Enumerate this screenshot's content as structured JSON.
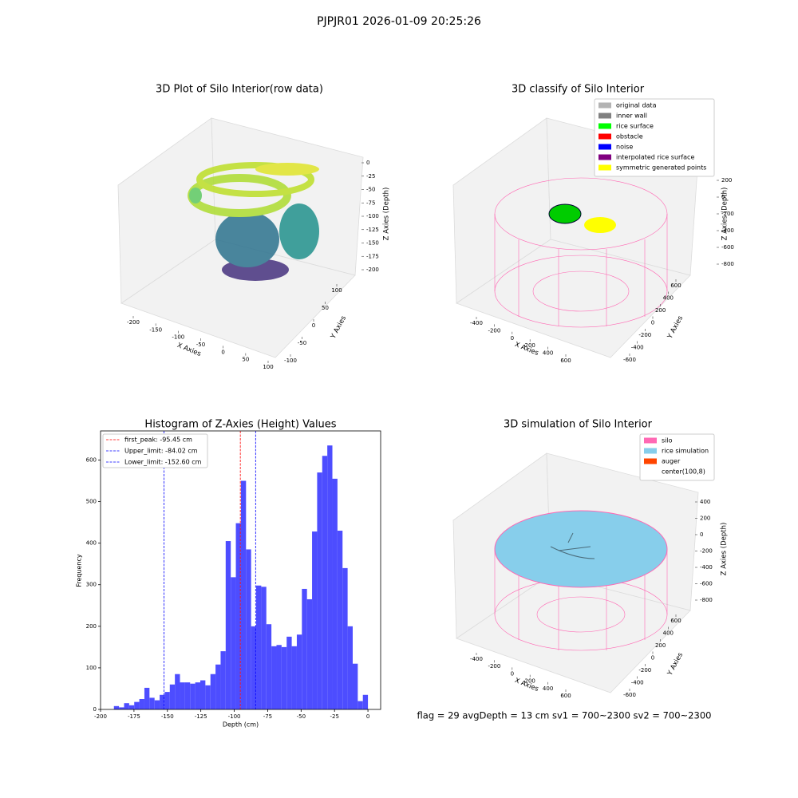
{
  "title": "PJPJR01 2026-01-09 20:25:26",
  "status": "flag = 29  avgDepth = 13 cm    sv1 = 700~2300  sv2 = 700~2300",
  "chart_data": [
    {
      "type": "scatter3d",
      "title": "3D Plot of Silo Interior(row data)",
      "xlabel": "X Axies",
      "ylabel": "Y Axies",
      "zlabel": "Z Axies (Depth)",
      "xlim": [
        -200,
        100
      ],
      "xticks": [
        -200,
        -150,
        -100,
        -50,
        0,
        50,
        100
      ],
      "ylim": [
        -100,
        100
      ],
      "yticks": [
        -100,
        -50,
        0,
        50,
        100
      ],
      "zlim": [
        0,
        -200
      ],
      "zticks": [
        0,
        -25,
        -50,
        -75,
        -100,
        -125,
        -150,
        -175,
        -200
      ]
    },
    {
      "type": "scatter3d",
      "title": "3D classify of Silo Interior",
      "xlabel": "X Axies",
      "ylabel": "Y Axies",
      "zlabel": "Z Axies (Depth)",
      "xlim": [
        -400,
        600
      ],
      "xticks": [
        -400,
        -200,
        0,
        200,
        400,
        600
      ],
      "ylim": [
        -600,
        600
      ],
      "yticks": [
        -600,
        -400,
        -200,
        0,
        200,
        400,
        600
      ],
      "zlim": [
        200,
        -800
      ],
      "zticks": [
        200,
        0,
        -200,
        -400,
        -600,
        -800
      ],
      "series": [
        {
          "name": "original data",
          "color": "#b3b3b3"
        },
        {
          "name": "inner wall",
          "color": "#808080"
        },
        {
          "name": "rice surface",
          "color": "#00ff00"
        },
        {
          "name": "obstacle",
          "color": "#ff0000"
        },
        {
          "name": "noise",
          "color": "#0000ff"
        },
        {
          "name": "interpolated rice surface",
          "color": "#800080"
        },
        {
          "name": "symmetric generated points",
          "color": "#ffff00"
        }
      ]
    },
    {
      "type": "histogram",
      "title": "Histogram of Z-Axies (Height) Values",
      "xlabel": "Depth (cm)",
      "ylabel": "Frequency",
      "color": "#4d4dff",
      "bins": [
        -190,
        -186.2,
        -182.4,
        -178.6,
        -174.8,
        -171,
        -167.2,
        -163.4,
        -159.6,
        -155.8,
        -152,
        -148.2,
        -144.4,
        -140.6,
        -136.8,
        -133,
        -129.2,
        -125.4,
        -121.6,
        -117.8,
        -114,
        -110.2,
        -106.4,
        -102.6,
        -98.8,
        -95,
        -91.2,
        -87.4,
        -83.6,
        -79.8,
        -76,
        -72.2,
        -68.4,
        -64.6,
        -60.8,
        -57,
        -53.2,
        -49.4,
        -45.6,
        -41.8,
        -38,
        -34.2,
        -30.4,
        -26.6,
        -22.8,
        -19,
        -15.2,
        -11.4,
        -7.6,
        -3.8,
        0
      ],
      "values": [
        8,
        5,
        15,
        10,
        18,
        25,
        52,
        28,
        22,
        35,
        42,
        60,
        85,
        65,
        65,
        62,
        65,
        70,
        58,
        85,
        108,
        140,
        405,
        318,
        448,
        550,
        385,
        200,
        298,
        295,
        205,
        152,
        155,
        150,
        175,
        152,
        180,
        290,
        265,
        428,
        570,
        610,
        635,
        555,
        430,
        340,
        200,
        110,
        20,
        35
      ],
      "xlim": [
        -200,
        9.5
      ],
      "xticks": [
        -200,
        -175,
        -150,
        -125,
        -100,
        -75,
        -50,
        -25,
        0
      ],
      "ylim": [
        0,
        670
      ],
      "yticks": [
        0,
        100,
        200,
        300,
        400,
        500,
        600
      ],
      "lines": [
        {
          "name": "first_peak",
          "value": -95.45,
          "label": "first_peak: -95.45 cm",
          "color": "#ff0000"
        },
        {
          "name": "Upper_limit",
          "value": -84.02,
          "label": "Upper_limit: -84.02 cm",
          "color": "#0000ff"
        },
        {
          "name": "Lower_limit",
          "value": -152.6,
          "label": "Lower_limit: -152.60 cm",
          "color": "#0000ff"
        }
      ]
    },
    {
      "type": "scatter3d",
      "title": "3D simulation of Silo Interior",
      "xlabel": "X Axies",
      "ylabel": "Y Axies",
      "zlabel": "Z Axies (Depth)",
      "xlim": [
        -400,
        600
      ],
      "xticks": [
        -400,
        -200,
        0,
        200,
        400,
        600
      ],
      "ylim": [
        -600,
        600
      ],
      "yticks": [
        -600,
        -400,
        -200,
        0,
        200,
        400,
        600
      ],
      "zlim": [
        400,
        -800
      ],
      "zticks": [
        400,
        200,
        0,
        -200,
        -400,
        -600,
        -800
      ],
      "series": [
        {
          "name": "silo",
          "color": "#ff69b4"
        },
        {
          "name": "rice simulation",
          "color": "#87ceeb"
        },
        {
          "name": "auger",
          "color": "#ff4500"
        },
        {
          "name": "center(100,8)",
          "color": "#ffffff"
        }
      ]
    }
  ]
}
